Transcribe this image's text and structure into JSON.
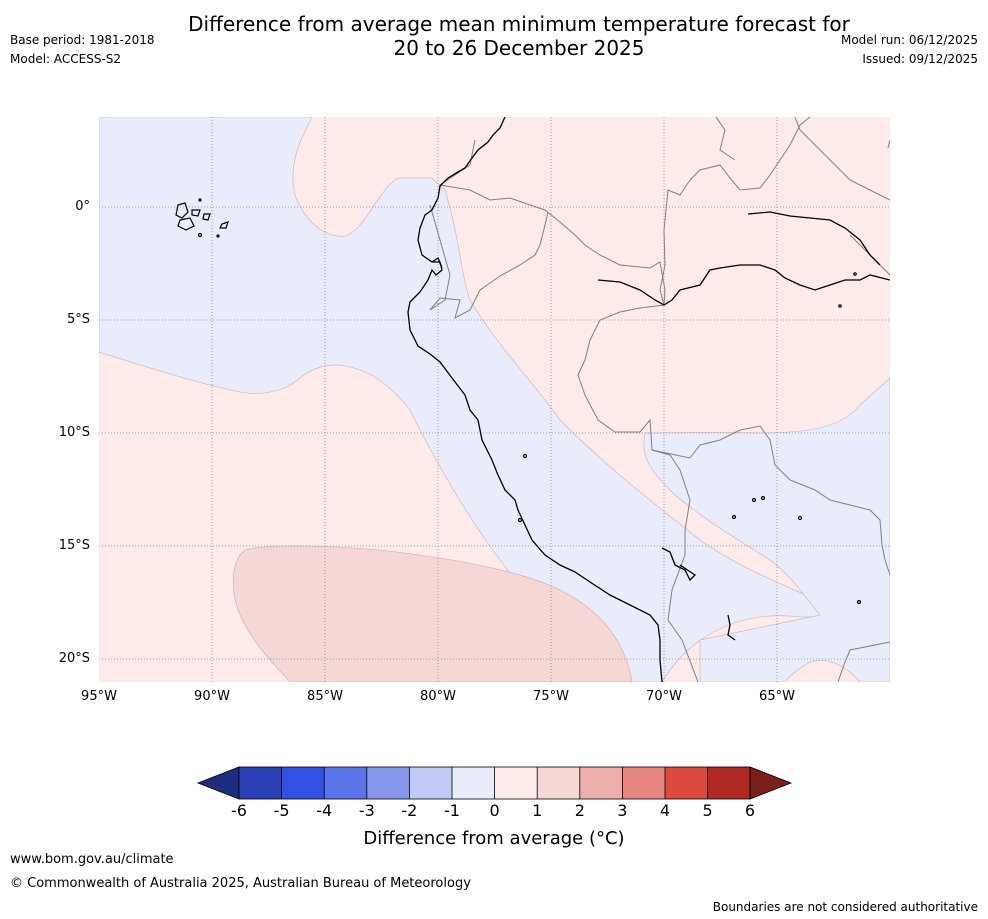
{
  "header": {
    "title_line1": "Difference from average mean minimum temperature forecast for",
    "title_line2": "20 to 26 December 2025",
    "base_period": "Base period: 1981-2018",
    "model": "Model: ACCESS-S2",
    "model_run": "Model run: 06/12/2025",
    "issued": "Issued: 09/12/2025"
  },
  "map": {
    "latitude_labels": [
      "0°",
      "5°S",
      "10°S",
      "15°S",
      "20°S"
    ],
    "longitude_labels": [
      "95°W",
      "90°W",
      "85°W",
      "80°W",
      "75°W",
      "70°W",
      "65°W"
    ],
    "category_colors": {
      "-1_to_0": "#e8ecfb",
      "0_to_1": "#fcebe9",
      "1_to_2": "#f5d7d5"
    }
  },
  "colorbar": {
    "title": "Difference from average (°C)",
    "ticks": [
      "-6",
      "-5",
      "-4",
      "-3",
      "-2",
      "-1",
      "0",
      "1",
      "2",
      "3",
      "4",
      "5",
      "6"
    ],
    "colors": [
      "#1f2d80",
      "#283fb5",
      "#3352e3",
      "#5b73e8",
      "#8596ec",
      "#c1c9f5",
      "#e8ecfb",
      "#fcebe9",
      "#f5d7d5",
      "#eeaea9",
      "#e8877f",
      "#dc4a3e",
      "#ae2a22",
      "#7b1f1a"
    ]
  },
  "footer": {
    "url": "www.bom.gov.au/climate",
    "copyright": "© Commonwealth of Australia 2025, Australian Bureau of Meteorology",
    "disclaimer": "Boundaries are not considered authoritative"
  }
}
